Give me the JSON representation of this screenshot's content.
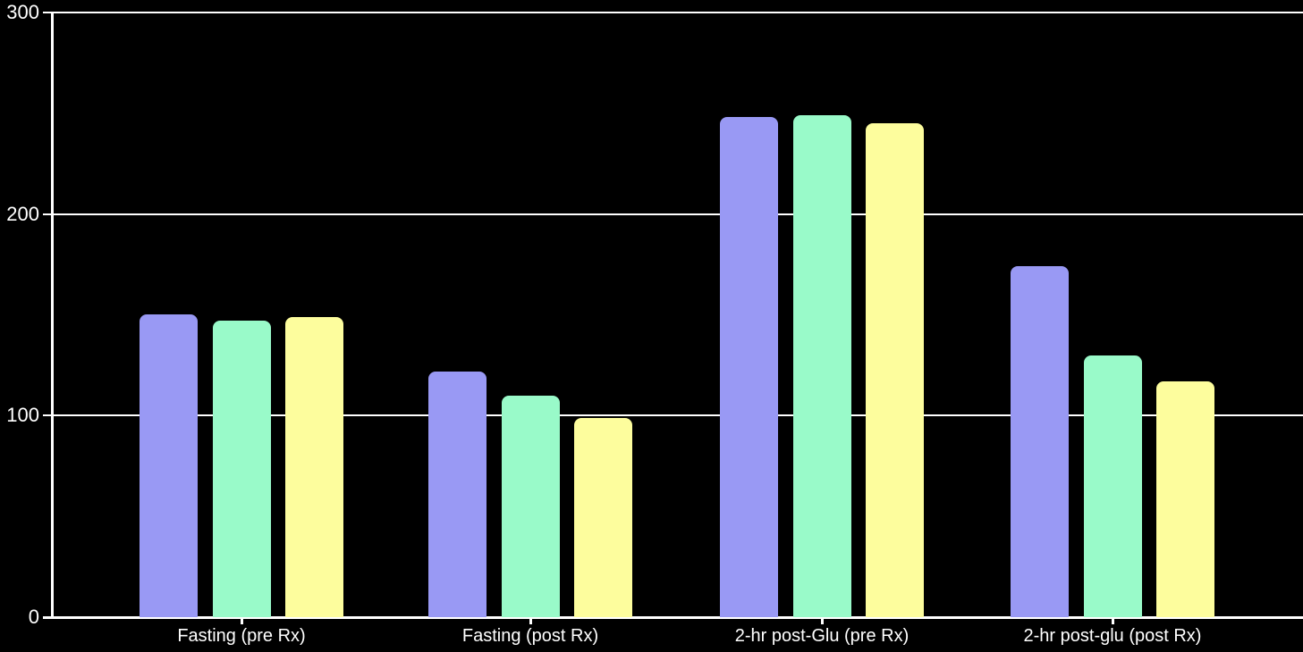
{
  "chart_data": {
    "type": "bar",
    "title": "",
    "categories": [
      "Fasting (pre Rx)",
      "Fasting (post Rx)",
      "2-hr post-Glu (pre Rx)",
      "2-hr post-glu (post Rx)"
    ],
    "series": [
      {
        "id": "series-1-purple",
        "color": "#9999f4",
        "values": [
          150,
          122,
          248,
          174
        ]
      },
      {
        "id": "series-2-green",
        "color": "#99fac9",
        "values": [
          147,
          110,
          249,
          130
        ]
      },
      {
        "id": "series-3-yellow",
        "color": "#fdfd9d",
        "values": [
          149,
          99,
          245,
          117
        ]
      }
    ],
    "xlabel": "",
    "ylabel": "",
    "ylim": [
      0,
      300
    ],
    "yticks": [
      0,
      100,
      200,
      300
    ],
    "grid": true,
    "legend_visible": false,
    "background_color": "#000000",
    "axis_color": "#ffffff",
    "label_color": "#ffffff"
  }
}
